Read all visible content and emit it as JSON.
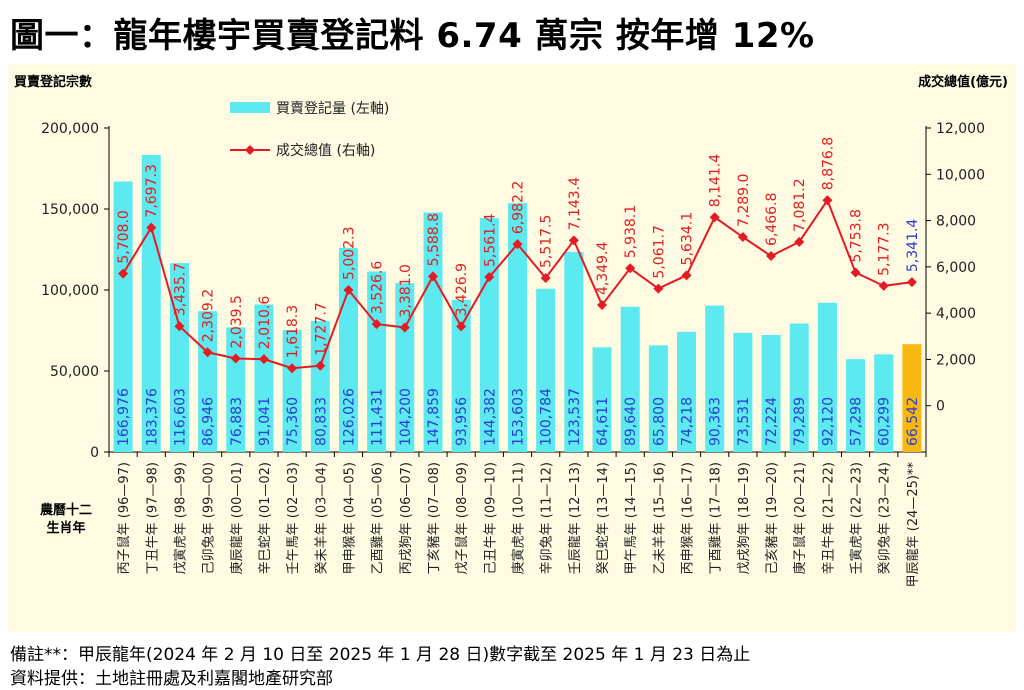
{
  "title": "圖一：龍年樓宇買賣登記料 6.74 萬宗  按年增 12%",
  "notes": [
    "備註**：甲辰龍年(2024 年 2 月 10 日至 2025 年 1 月 28 日)數字截至 2025 年 1 月 23 日為止",
    "資料提供：土地註冊處及利嘉閣地產研究部"
  ],
  "colors": {
    "panel_bg": "#fefbe2",
    "bar": "#5ce9ef",
    "bar_highlight": "#f8b812",
    "line": "#e51b23",
    "marker": "#e51b23",
    "label_red": "#e02020",
    "label_blue": "#2a3fcf",
    "bar_label": "#2a3fcf"
  },
  "chart_data": {
    "type": "bar",
    "title": "",
    "ylabel_left": "買賣登記宗數",
    "ylabel_right": "成交總值(億元)",
    "xlabel": "農曆十二生肖年",
    "ylim_left": [
      0,
      200000
    ],
    "yticks_left": [
      "0",
      "50,000",
      "100,000",
      "150,000",
      "200,000"
    ],
    "ylim_right": [
      -2000,
      12000
    ],
    "yticks_right": [
      "0",
      "2,000",
      "4,000",
      "6,000",
      "8,000",
      "10,000",
      "12,000"
    ],
    "grid": false,
    "legend_position": "top-left",
    "categories": [
      "丙子鼠年 (96—97)",
      "丁丑牛年 (97—98)",
      "戊寅虎年 (98—99)",
      "己卯兔年 (99—00)",
      "庚辰龍年 (00—01)",
      "辛巳蛇年 (01—02)",
      "壬午馬年 (02—03)",
      "癸未羊年 (03—04)",
      "甲申猴年 (04—05)",
      "乙酉雞年 (05—06)",
      "丙戌狗年 (06—07)",
      "丁亥豬年 (07—08)",
      "戊子鼠年 (08—09)",
      "己丑牛年 (09—10)",
      "庚寅虎年 (10—11)",
      "辛卯兔年 (11—12)",
      "壬辰龍年 (12—13)",
      "癸巳蛇年 (13—14)",
      "甲午馬年 (14—15)",
      "乙未羊年 (15—16)",
      "丙申猴年 (16—17)",
      "丁酉雞年 (17—18)",
      "戊戌狗年 (18—19)",
      "己亥豬年 (19—20)",
      "庚子鼠年 (20—21)",
      "辛丑牛年 (21—22)",
      "壬寅虎年 (22—23)",
      "癸卯兔年 (23—24)",
      "甲辰龍年 (24—25)**"
    ],
    "series": [
      {
        "name": "買賣登記量 (左軸)",
        "type": "bar",
        "axis": "left",
        "values": [
          166976,
          183376,
          116603,
          86946,
          76883,
          91041,
          75360,
          80833,
          126026,
          111431,
          104200,
          147859,
          93956,
          144382,
          153603,
          100784,
          123537,
          64611,
          89640,
          65800,
          74218,
          90363,
          73531,
          72224,
          79289,
          92120,
          57298,
          60299,
          66542
        ],
        "labels": [
          "166,976",
          "183,376",
          "116,603",
          "86,946",
          "76,883",
          "91,041",
          "75,360",
          "80,833",
          "126,026",
          "111,431",
          "104,200",
          "147,859",
          "93,956",
          "144,382",
          "153,603",
          "100,784",
          "123,537",
          "64,611",
          "89,640",
          "65,800",
          "74,218",
          "90,363",
          "73,531",
          "72,224",
          "79,289",
          "92,120",
          "57,298",
          "60,299",
          "66,542"
        ]
      },
      {
        "name": "成交總值 (右軸)",
        "type": "line",
        "axis": "right",
        "values": [
          5708.0,
          7697.3,
          3435.7,
          2309.2,
          2039.5,
          2010.6,
          1618.3,
          1727.7,
          5002.3,
          3526.6,
          3381.0,
          5588.8,
          3426.9,
          5561.4,
          6982.2,
          5517.5,
          7143.4,
          4349.4,
          5938.1,
          5061.7,
          5634.1,
          8141.4,
          7289.0,
          6466.8,
          7081.2,
          8876.8,
          5753.8,
          5177.3,
          5341.4
        ],
        "labels": [
          "5,708.0",
          "7,697.3",
          "3,435.7",
          "2,309.2",
          "2,039.5",
          "2,010.6",
          "1,618.3",
          "1,727.7",
          "5,002.3",
          "3,526.6",
          "3,381.0",
          "5,588.8",
          "3,426.9",
          "5,561.4",
          "6,982.2",
          "5,517.5",
          "7,143.4",
          "4,349.4",
          "5,938.1",
          "5,061.7",
          "5,634.1",
          "8,141.4",
          "7,289.0",
          "6,466.8",
          "7,081.2",
          "8,876.8",
          "5,753.8",
          "5,177.3",
          "5,341.4"
        ]
      }
    ]
  }
}
